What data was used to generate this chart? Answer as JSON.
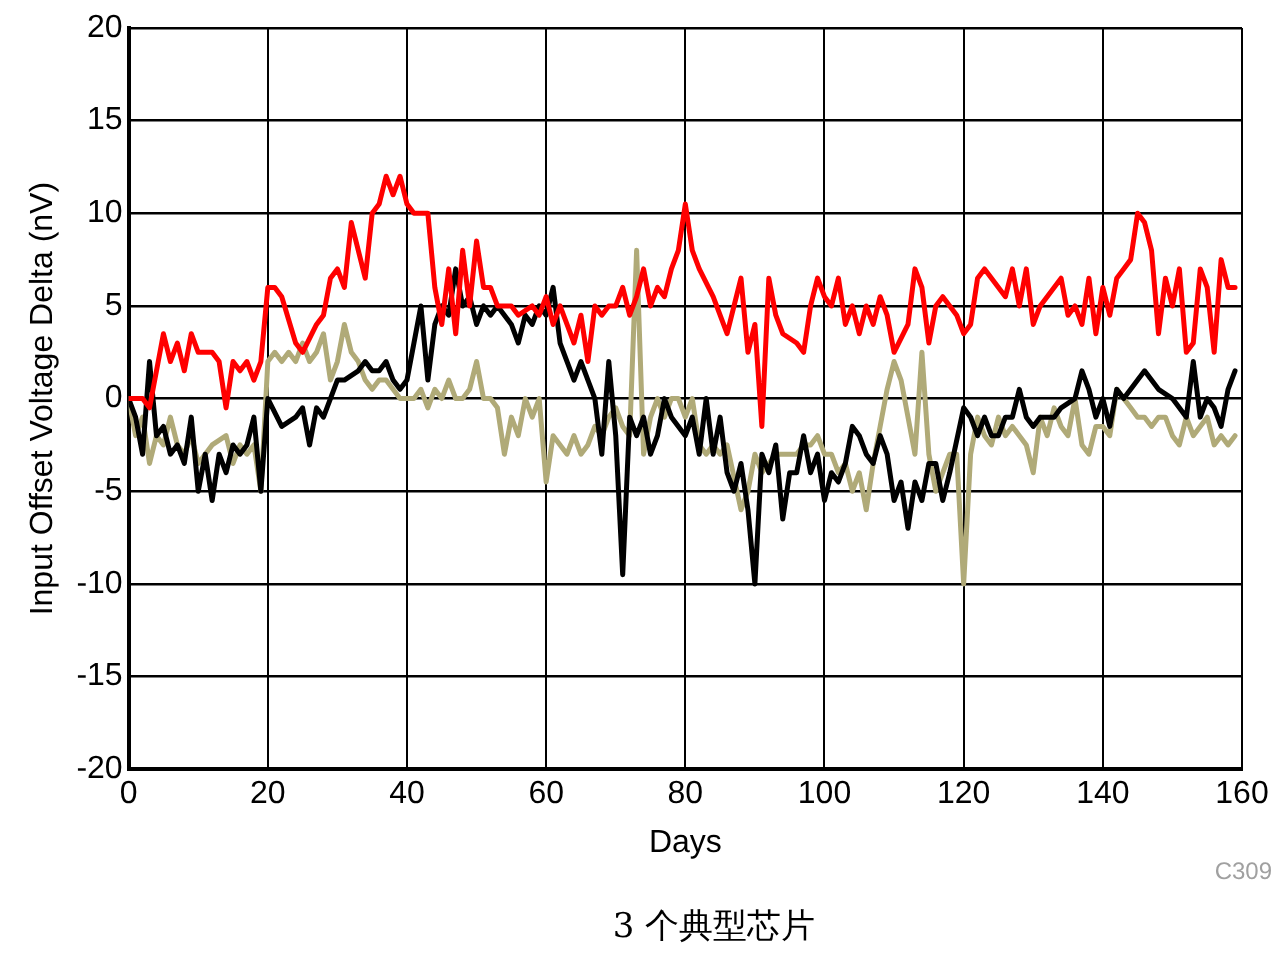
{
  "chart_data": {
    "type": "line",
    "xlabel": "Days",
    "ylabel": "Input Offset Voltage Delta (nV)",
    "annotations": [
      "C309",
      "3 个典型芯片"
    ],
    "xlim": [
      0,
      160
    ],
    "xticks": [
      0,
      20,
      40,
      60,
      80,
      100,
      120,
      140,
      160
    ],
    "ylim": [
      -20,
      20
    ],
    "yticks": [
      -20,
      -15,
      -10,
      -5,
      0,
      5,
      10,
      15,
      20
    ],
    "grid": true,
    "legend": false,
    "marker": "none",
    "line_style": "solid",
    "series": [
      {
        "color": "#ff0000",
        "x": [
          0,
          2,
          3,
          5,
          6,
          7,
          8,
          9,
          10,
          12,
          13,
          14,
          15,
          16,
          17,
          18,
          19,
          20,
          21,
          22,
          24,
          25,
          27,
          28,
          29,
          30,
          31,
          32,
          33,
          34,
          35,
          36,
          37,
          38,
          39,
          40,
          41,
          43,
          44,
          45,
          46,
          47,
          48,
          49,
          50,
          51,
          52,
          53,
          55,
          56,
          58,
          59,
          60,
          61,
          62,
          63,
          64,
          65,
          66,
          67,
          68,
          69,
          70,
          71,
          72,
          73,
          74,
          75,
          76,
          77,
          78,
          79,
          80,
          81,
          82,
          84,
          86,
          87,
          88,
          89,
          90,
          91,
          92,
          93,
          94,
          96,
          97,
          98,
          99,
          100,
          101,
          102,
          103,
          104,
          105,
          106,
          107,
          108,
          109,
          110,
          112,
          113,
          114,
          115,
          116,
          117,
          118,
          119,
          120,
          121,
          122,
          123,
          124,
          125,
          126,
          127,
          128,
          129,
          130,
          131,
          132,
          134,
          135,
          136,
          137,
          138,
          139,
          140,
          141,
          142,
          143,
          144,
          145,
          146,
          147,
          148,
          149,
          150,
          151,
          152,
          153,
          154,
          155,
          156,
          157,
          158,
          159
        ],
        "values": [
          0,
          0,
          -0.5,
          3.5,
          2,
          3,
          1.5,
          3.5,
          2.5,
          2.5,
          2,
          -0.5,
          2,
          1.5,
          2,
          1,
          2,
          6,
          6,
          5.5,
          3,
          2.5,
          4,
          4.5,
          6.5,
          7,
          6,
          9.5,
          8,
          6.5,
          10,
          10.5,
          12,
          11,
          12,
          10.5,
          10,
          10,
          6,
          4,
          7,
          3.5,
          8,
          5,
          8.5,
          6,
          6,
          5,
          5,
          4.5,
          5,
          4.5,
          5.5,
          4,
          5,
          4,
          3,
          4.5,
          2,
          5,
          4.5,
          5,
          5,
          6,
          4.5,
          5.5,
          7,
          5,
          6,
          5.5,
          7,
          8,
          10.5,
          8,
          7,
          5.5,
          3.5,
          5,
          6.5,
          2.5,
          4,
          -1.5,
          6.5,
          4.5,
          3.5,
          3,
          2.5,
          5,
          6.5,
          5.5,
          5,
          6.5,
          4,
          5,
          3.5,
          5,
          4,
          5.5,
          4.5,
          2.5,
          4,
          7,
          6,
          3,
          5,
          5.5,
          5,
          4.5,
          3.5,
          4,
          6.5,
          7,
          6.5,
          6,
          5.5,
          7,
          5,
          7,
          4,
          5,
          5.5,
          6.5,
          4.5,
          5,
          4,
          6.5,
          3.5,
          6,
          4.5,
          6.5,
          7,
          7.5,
          10,
          9.5,
          8,
          3.5,
          6.5,
          5,
          7,
          2.5,
          3,
          7,
          6,
          2.5,
          7.5,
          6,
          6
        ]
      },
      {
        "color": "#000000",
        "x": [
          0,
          1,
          2,
          3,
          4,
          5,
          6,
          7,
          8,
          9,
          10,
          11,
          12,
          13,
          14,
          15,
          16,
          17,
          18,
          19,
          20,
          22,
          24,
          25,
          26,
          27,
          28,
          29,
          30,
          31,
          33,
          34,
          35,
          36,
          37,
          38,
          39,
          40,
          41,
          42,
          43,
          44,
          45,
          46,
          47,
          48,
          49,
          50,
          51,
          52,
          53,
          55,
          56,
          57,
          58,
          59,
          60,
          61,
          62,
          63,
          64,
          65,
          66,
          67,
          68,
          69,
          70,
          71,
          72,
          73,
          74,
          75,
          76,
          77,
          78,
          79,
          80,
          81,
          82,
          83,
          84,
          85,
          86,
          87,
          88,
          89,
          90,
          91,
          92,
          93,
          94,
          95,
          96,
          97,
          98,
          99,
          100,
          101,
          102,
          103,
          104,
          105,
          106,
          107,
          108,
          109,
          110,
          111,
          112,
          113,
          114,
          115,
          116,
          117,
          118,
          120,
          121,
          122,
          123,
          124,
          125,
          126,
          127,
          128,
          129,
          130,
          131,
          132,
          133,
          134,
          136,
          137,
          138,
          139,
          140,
          141,
          142,
          143,
          144,
          145,
          146,
          147,
          148,
          150,
          151,
          152,
          153,
          154,
          155,
          156,
          157,
          158,
          159
        ],
        "values": [
          0,
          -1,
          -3,
          2,
          -2,
          -1.5,
          -3,
          -2.5,
          -3.5,
          -1,
          -5,
          -3,
          -5.5,
          -3,
          -4,
          -2.5,
          -3,
          -2.5,
          -1,
          -5,
          0,
          -1.5,
          -1,
          -0.5,
          -2.5,
          -0.5,
          -1,
          0,
          1,
          1,
          1.5,
          2,
          1.5,
          1.5,
          2,
          1,
          0.5,
          1,
          3,
          5,
          1,
          4,
          5,
          4.5,
          7,
          5,
          5.5,
          4,
          5,
          4.5,
          5,
          4,
          3,
          4.5,
          4,
          5,
          4.5,
          6,
          3,
          2,
          1,
          2,
          1,
          0,
          -3,
          2,
          -2,
          -9.5,
          -1,
          -2,
          -1,
          -3,
          -2,
          0,
          -1,
          -1.5,
          -2,
          -1,
          -3,
          0,
          -3,
          -1,
          -4,
          -5,
          -3.5,
          -6,
          -10,
          -3,
          -4,
          -2.5,
          -6.5,
          -4,
          -4,
          -2,
          -4,
          -3,
          -5.5,
          -4,
          -4.5,
          -3.5,
          -1.5,
          -2,
          -3,
          -3.5,
          -2,
          -3,
          -5.5,
          -4.5,
          -7,
          -4.5,
          -5.5,
          -3.5,
          -3.5,
          -5.5,
          -4,
          -0.5,
          -1,
          -2,
          -1,
          -2,
          -2,
          -1,
          -1,
          0.5,
          -1,
          -1.5,
          -1,
          -1,
          -1,
          -0.5,
          0,
          1.5,
          0.5,
          -1,
          0,
          -1.5,
          0.5,
          0,
          0.5,
          1,
          1.5,
          1,
          0.5,
          0,
          -0.5,
          -1,
          2,
          -1,
          0,
          -0.5,
          -1.5,
          0.5,
          1.5
        ]
      },
      {
        "color": "#b0aa78",
        "x": [
          0,
          1,
          2,
          3,
          4,
          5,
          6,
          7,
          8,
          9,
          10,
          11,
          12,
          14,
          15,
          16,
          17,
          18,
          19,
          20,
          21,
          22,
          23,
          24,
          25,
          26,
          27,
          28,
          29,
          30,
          31,
          32,
          33,
          34,
          35,
          36,
          37,
          38,
          39,
          40,
          41,
          42,
          43,
          44,
          45,
          46,
          47,
          48,
          49,
          50,
          51,
          52,
          53,
          54,
          55,
          56,
          57,
          58,
          59,
          60,
          61,
          62,
          63,
          64,
          65,
          66,
          67,
          68,
          69,
          70,
          71,
          72,
          73,
          74,
          75,
          76,
          77,
          78,
          79,
          80,
          81,
          82,
          83,
          84,
          85,
          86,
          88,
          89,
          90,
          91,
          92,
          93,
          94,
          96,
          97,
          98,
          99,
          100,
          101,
          102,
          103,
          104,
          105,
          106,
          107,
          108,
          109,
          110,
          111,
          112,
          113,
          114,
          115,
          116,
          117,
          118,
          119,
          120,
          121,
          122,
          123,
          124,
          125,
          126,
          127,
          128,
          129,
          130,
          131,
          132,
          133,
          134,
          135,
          136,
          137,
          138,
          139,
          140,
          141,
          142,
          143,
          144,
          145,
          146,
          147,
          148,
          149,
          150,
          151,
          152,
          153,
          154,
          155,
          156,
          157,
          158,
          159
        ],
        "values": [
          0,
          -2,
          -1,
          -3.5,
          -2,
          -2.5,
          -1,
          -2.5,
          -3,
          -2,
          -3.5,
          -3,
          -2.5,
          -2,
          -3.5,
          -2.5,
          -3,
          -2.5,
          -5,
          2,
          2.5,
          2,
          2.5,
          2,
          3,
          2,
          2.5,
          3.5,
          1,
          2,
          4,
          2.5,
          2,
          1,
          0.5,
          1,
          1,
          0.5,
          0,
          0,
          0,
          0.5,
          -0.5,
          0.5,
          0,
          1,
          0,
          0,
          0.5,
          2,
          0,
          0,
          -0.5,
          -3,
          -1,
          -2,
          0,
          -1,
          0,
          -4.5,
          -2,
          -2.5,
          -3,
          -2,
          -3,
          -2.5,
          -1.5,
          -2,
          -1,
          -0.5,
          -1.5,
          -2,
          8,
          -3,
          -1,
          0,
          -1,
          0,
          0,
          -1,
          0,
          -2.5,
          -3,
          -2.5,
          -3,
          -2.5,
          -6,
          -5,
          -3,
          -4,
          -3.5,
          -3,
          -3,
          -3,
          -2.5,
          -2.5,
          -2,
          -3,
          -3,
          -4,
          -3.5,
          -5,
          -4,
          -6,
          -3.5,
          -1.5,
          0.5,
          2,
          1,
          -1,
          -3,
          2.5,
          -3,
          -5,
          -4,
          -3,
          -3,
          -10,
          -3,
          -1,
          -2,
          -2.5,
          -1,
          -2,
          -1.5,
          -2,
          -2.5,
          -4,
          -1,
          -2,
          -0.5,
          -1.5,
          -2,
          0,
          -2.5,
          -3,
          -1.5,
          -1.5,
          -2,
          0.5,
          0,
          -0.5,
          -1,
          -1,
          -1.5,
          -1,
          -1,
          -2,
          -2.5,
          -1,
          -2,
          -1.5,
          -1,
          -2.5,
          -2,
          -2.5,
          -2
        ]
      }
    ]
  }
}
